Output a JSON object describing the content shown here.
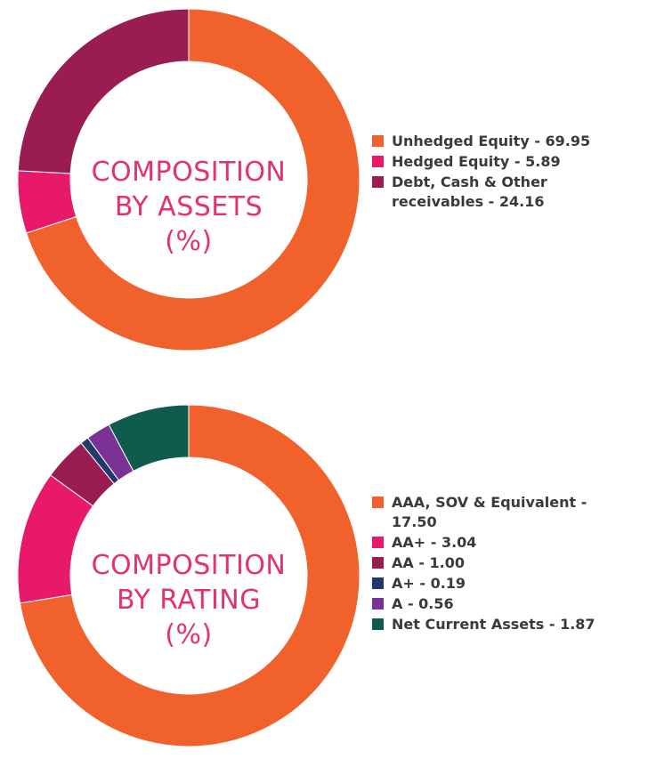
{
  "chart_data": [
    {
      "type": "pie",
      "title_lines": [
        "COMPOSITION",
        "BY ASSETS",
        "(%)"
      ],
      "slices": [
        {
          "label": "Unhedged Equity - 69.95",
          "value": 69.95,
          "color": "#f0612c"
        },
        {
          "label": "Hedged Equity - 5.89",
          "value": 5.89,
          "color": "#e8186a"
        },
        {
          "label": "Debt, Cash & Other receivables - 24.16",
          "value": 24.16,
          "color": "#9a1d52"
        }
      ]
    },
    {
      "type": "pie",
      "title_lines": [
        "COMPOSITION",
        "BY RATING",
        "(%)"
      ],
      "slices": [
        {
          "label": "AAA, SOV & Equivalent - 17.50",
          "value": 17.5,
          "color": "#f0612c"
        },
        {
          "label": "AA+ - 3.04",
          "value": 3.04,
          "color": "#e8186a"
        },
        {
          "label": "AA - 1.00",
          "value": 1.0,
          "color": "#9a1d52"
        },
        {
          "label": "A+ - 0.19",
          "value": 0.19,
          "color": "#1f3a6b"
        },
        {
          "label": "A - 0.56",
          "value": 0.56,
          "color": "#7b3296"
        },
        {
          "label": "Net Current Assets - 1.87",
          "value": 1.87,
          "color": "#0f5c4f"
        }
      ]
    }
  ]
}
